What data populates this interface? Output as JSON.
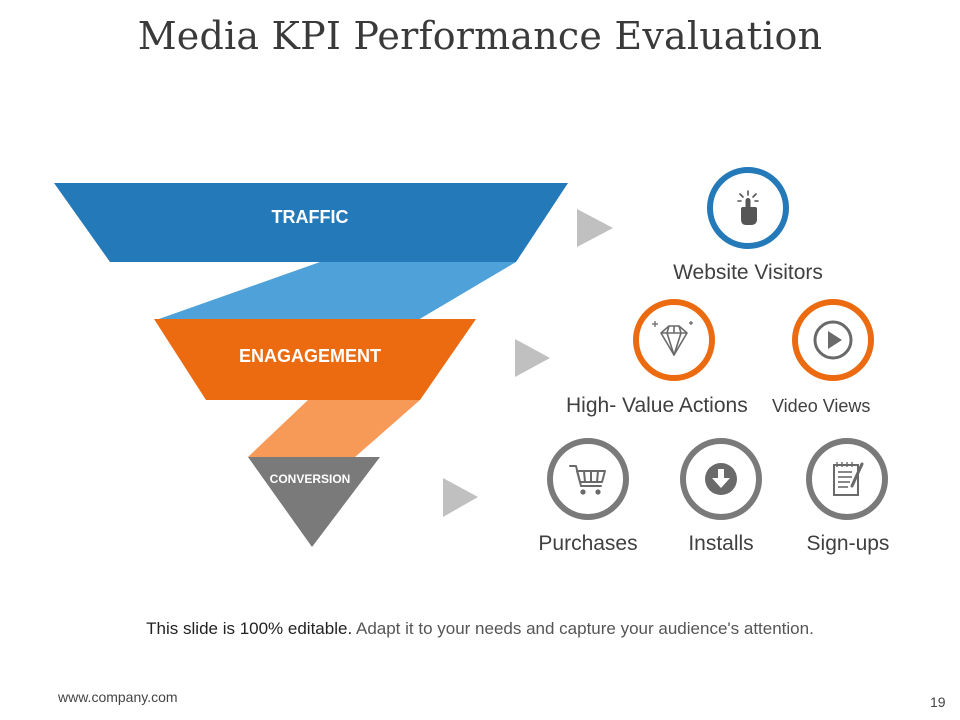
{
  "slide": {
    "title": "Media KPI Performance Evaluation",
    "footer_bold": "This slide is 100% editable.",
    "footer_rest": "Adapt it to your needs and capture your audience's attention.",
    "website": "www.company.com",
    "page_number": "19"
  },
  "colors": {
    "traffic": "#2479b8",
    "traffic_connector": "#4ea2d9",
    "engagement": "#ec6b10",
    "engagement_connector": "#f79a57",
    "conversion": "#7a7a7a",
    "arrow": "#c0c0c0",
    "icon_gray": "#6a6a6a"
  },
  "funnel": {
    "stages": [
      {
        "label": "TRAFFIC"
      },
      {
        "label": "ENAGAGEMENT"
      },
      {
        "label": "CONVERSION"
      }
    ]
  },
  "kpis": {
    "traffic": [
      {
        "label": "Website Visitors",
        "icon": "tap-hand-icon"
      }
    ],
    "engagement": [
      {
        "label": "High- Value Actions",
        "icon": "diamond-icon"
      },
      {
        "label": "Video Views",
        "icon": "play-icon"
      }
    ],
    "conversion": [
      {
        "label": "Purchases",
        "icon": "shopping-cart-icon"
      },
      {
        "label": "Installs",
        "icon": "download-icon"
      },
      {
        "label": "Sign-ups",
        "icon": "signup-form-icon"
      }
    ]
  }
}
